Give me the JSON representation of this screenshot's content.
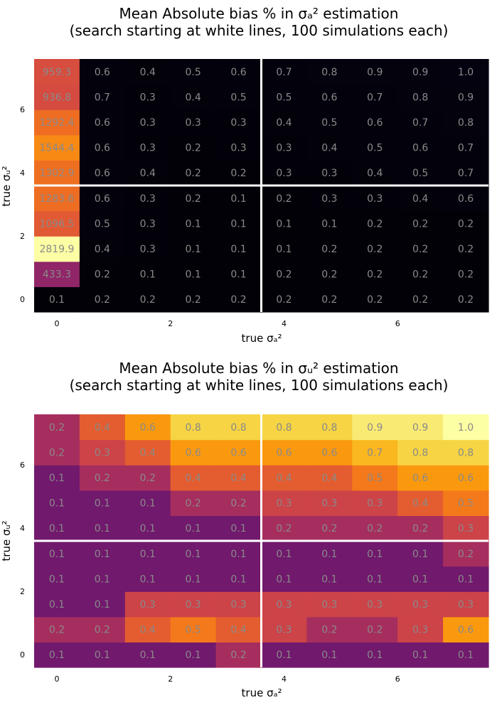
{
  "chart_data": [
    {
      "type": "heatmap",
      "colormap": "inferno",
      "title_line1": "Mean Absolute bias % in σₐ² estimation",
      "title_line2": "(search starting at white lines, 100 simulations each)",
      "xlabel": "true σₐ²",
      "ylabel": "true σᵤ²",
      "xticks": [
        "0",
        "2",
        "4",
        "6"
      ],
      "yticks": [
        "0",
        "2",
        "4",
        "6"
      ],
      "xlim": [
        -0.4,
        7.6
      ],
      "ylim": [
        -0.4,
        7.6
      ],
      "x": [
        0,
        0.8,
        1.6,
        2.4,
        3.2,
        4.0,
        4.8,
        5.6,
        6.4,
        7.2
      ],
      "y": [
        0,
        0.8,
        1.6,
        2.4,
        3.2,
        4.0,
        4.8,
        5.6,
        6.4,
        7.2
      ],
      "white_line_x": 3.6,
      "white_line_y": 3.6,
      "color_max": 2819.9,
      "rows": [
        [
          "0.1",
          "0.2",
          "0.2",
          "0.2",
          "0.2",
          "0.2",
          "0.2",
          "0.2",
          "0.2",
          "0.2"
        ],
        [
          "433.3",
          "0.2",
          "0.1",
          "0.1",
          "0.1",
          "0.2",
          "0.2",
          "0.2",
          "0.2",
          "0.2"
        ],
        [
          "2819.9",
          "0.4",
          "0.3",
          "0.1",
          "0.1",
          "0.1",
          "0.2",
          "0.2",
          "0.2",
          "0.2"
        ],
        [
          "1096.5",
          "0.5",
          "0.3",
          "0.1",
          "0.1",
          "0.1",
          "0.1",
          "0.2",
          "0.2",
          "0.2"
        ],
        [
          "1283.6",
          "0.6",
          "0.3",
          "0.2",
          "0.1",
          "0.2",
          "0.3",
          "0.3",
          "0.4",
          "0.6"
        ],
        [
          "1302.9",
          "0.6",
          "0.4",
          "0.2",
          "0.2",
          "0.3",
          "0.3",
          "0.4",
          "0.5",
          "0.7"
        ],
        [
          "1544.4",
          "0.6",
          "0.3",
          "0.2",
          "0.3",
          "0.3",
          "0.4",
          "0.5",
          "0.6",
          "0.7"
        ],
        [
          "1292.4",
          "0.6",
          "0.3",
          "0.3",
          "0.3",
          "0.4",
          "0.5",
          "0.6",
          "0.7",
          "0.8"
        ],
        [
          "936.8",
          "0.7",
          "0.3",
          "0.4",
          "0.5",
          "0.5",
          "0.6",
          "0.7",
          "0.8",
          "0.9"
        ],
        [
          "959.3",
          "0.6",
          "0.4",
          "0.5",
          "0.6",
          "0.7",
          "0.8",
          "0.9",
          "0.9",
          "1.0"
        ]
      ]
    },
    {
      "type": "heatmap",
      "colormap": "inferno",
      "title_line1": "Mean Absolute bias % in σᵤ² estimation",
      "title_line2": "(search starting at white lines, 100 simulations each)",
      "xlabel": "true σₐ²",
      "ylabel": "true σᵤ²",
      "xticks": [
        "0",
        "2",
        "4",
        "6"
      ],
      "yticks": [
        "0",
        "2",
        "4",
        "6"
      ],
      "xlim": [
        -0.4,
        7.6
      ],
      "ylim": [
        -0.4,
        7.6
      ],
      "x": [
        0,
        0.8,
        1.6,
        2.4,
        3.2,
        4.0,
        4.8,
        5.6,
        6.4,
        7.2
      ],
      "y": [
        0,
        0.8,
        1.6,
        2.4,
        3.2,
        4.0,
        4.8,
        5.6,
        6.4,
        7.2
      ],
      "white_line_x": 3.6,
      "white_line_y": 3.6,
      "color_max": 1.0,
      "rows": [
        [
          "0.1",
          "0.1",
          "0.1",
          "0.1",
          "0.2",
          "0.1",
          "0.1",
          "0.1",
          "0.1",
          "0.1"
        ],
        [
          "0.2",
          "0.2",
          "0.4",
          "0.5",
          "0.4",
          "0.3",
          "0.2",
          "0.2",
          "0.3",
          "0.6"
        ],
        [
          "0.1",
          "0.1",
          "0.3",
          "0.3",
          "0.3",
          "0.3",
          "0.3",
          "0.3",
          "0.3",
          "0.3"
        ],
        [
          "0.1",
          "0.1",
          "0.1",
          "0.1",
          "0.1",
          "0.1",
          "0.1",
          "0.1",
          "0.1",
          "0.1"
        ],
        [
          "0.1",
          "0.1",
          "0.1",
          "0.1",
          "0.1",
          "0.1",
          "0.1",
          "0.1",
          "0.1",
          "0.2"
        ],
        [
          "0.1",
          "0.1",
          "0.1",
          "0.1",
          "0.1",
          "0.2",
          "0.2",
          "0.2",
          "0.2",
          "0.3"
        ],
        [
          "0.1",
          "0.1",
          "0.1",
          "0.2",
          "0.2",
          "0.3",
          "0.3",
          "0.3",
          "0.4",
          "0.5"
        ],
        [
          "0.1",
          "0.2",
          "0.2",
          "0.4",
          "0.4",
          "0.4",
          "0.4",
          "0.5",
          "0.6",
          "0.6"
        ],
        [
          "0.2",
          "0.3",
          "0.4",
          "0.6",
          "0.6",
          "0.6",
          "0.6",
          "0.7",
          "0.8",
          "0.8"
        ],
        [
          "0.2",
          "0.4",
          "0.6",
          "0.8",
          "0.8",
          "0.8",
          "0.8",
          "0.9",
          "0.9",
          "1.0"
        ]
      ]
    }
  ]
}
